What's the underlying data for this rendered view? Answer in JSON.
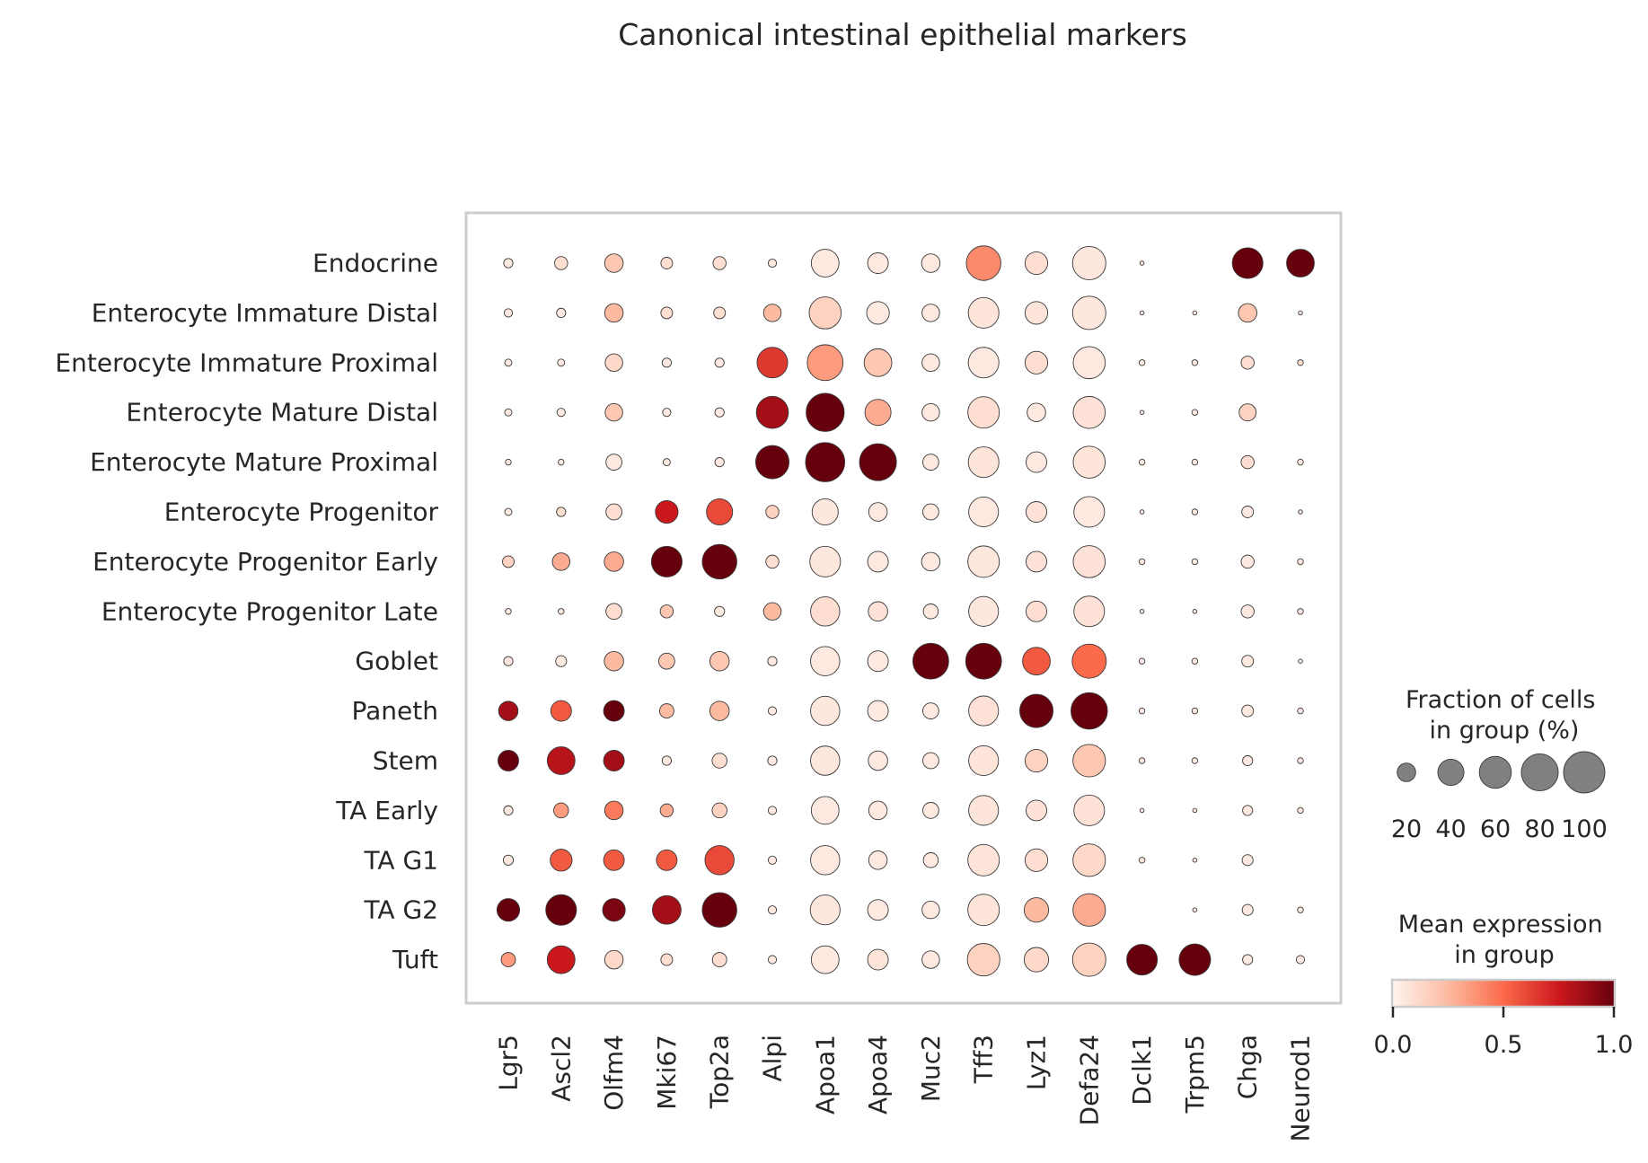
{
  "chart_data": {
    "type": "dotplot",
    "title": "Canonical intestinal epithelial markers",
    "genes": [
      "Lgr5",
      "Ascl2",
      "Olfm4",
      "Mki67",
      "Top2a",
      "Alpi",
      "Apoa1",
      "Apoa4",
      "Muc2",
      "Tff3",
      "Lyz1",
      "Defa24",
      "Dclk1",
      "Trpm5",
      "Chga",
      "Neurod1"
    ],
    "groups": [
      "Endocrine",
      "Enterocyte Immature Distal",
      "Enterocyte Immature Proximal",
      "Enterocyte Mature Distal",
      "Enterocyte Mature Proximal",
      "Enterocyte Progenitor",
      "Enterocyte Progenitor Early",
      "Enterocyte Progenitor Late",
      "Goblet",
      "Paneth",
      "Stem",
      "TA Early",
      "TA G1",
      "TA G2",
      "Tuft"
    ],
    "fraction_pct": [
      [
        5,
        10,
        20,
        8,
        10,
        4,
        45,
        25,
        20,
        70,
        30,
        65,
        1,
        0,
        55,
        45
      ],
      [
        4,
        5,
        20,
        8,
        8,
        18,
        60,
        30,
        18,
        55,
        30,
        65,
        1,
        1,
        20,
        1
      ],
      [
        3,
        3,
        18,
        5,
        5,
        55,
        75,
        45,
        18,
        55,
        30,
        60,
        2,
        2,
        10,
        2
      ],
      [
        3,
        4,
        18,
        4,
        5,
        60,
        85,
        40,
        18,
        58,
        20,
        60,
        1,
        2,
        17,
        0
      ],
      [
        2,
        2,
        15,
        3,
        5,
        65,
        90,
        80,
        15,
        55,
        25,
        60,
        2,
        2,
        10,
        2
      ],
      [
        3,
        5,
        15,
        30,
        40,
        10,
        40,
        20,
        15,
        52,
        25,
        55,
        1,
        2,
        8,
        1
      ],
      [
        8,
        18,
        22,
        55,
        70,
        10,
        55,
        25,
        20,
        58,
        25,
        60,
        2,
        2,
        10,
        2
      ],
      [
        2,
        2,
        15,
        10,
        6,
        18,
        50,
        22,
        13,
        52,
        25,
        55,
        1,
        1,
        10,
        2
      ],
      [
        5,
        7,
        22,
        15,
        22,
        5,
        50,
        25,
        75,
        75,
        45,
        68,
        2,
        2,
        8,
        1
      ],
      [
        22,
        25,
        25,
        12,
        22,
        4,
        50,
        25,
        15,
        52,
        65,
        78,
        2,
        2,
        8,
        2
      ],
      [
        25,
        45,
        25,
        5,
        13,
        5,
        50,
        22,
        15,
        52,
        30,
        62,
        2,
        2,
        6,
        2
      ],
      [
        5,
        13,
        20,
        10,
        13,
        4,
        45,
        20,
        15,
        52,
        25,
        55,
        1,
        1,
        6,
        2
      ],
      [
        6,
        28,
        25,
        25,
        50,
        4,
        50,
        20,
        13,
        58,
        30,
        62,
        2,
        1,
        7,
        0
      ],
      [
        30,
        55,
        30,
        48,
        70,
        4,
        52,
        25,
        18,
        58,
        35,
        62,
        0,
        1,
        7,
        2
      ],
      [
        12,
        45,
        20,
        8,
        12,
        4,
        45,
        25,
        18,
        62,
        35,
        65,
        55,
        58,
        6,
        4
      ]
    ],
    "mean_expression": [
      [
        0.05,
        0.1,
        0.2,
        0.1,
        0.1,
        0.05,
        0.05,
        0.05,
        0.05,
        0.4,
        0.1,
        0.06,
        0.1,
        0.1,
        1.0,
        1.0
      ],
      [
        0.05,
        0.05,
        0.25,
        0.1,
        0.1,
        0.25,
        0.15,
        0.05,
        0.05,
        0.07,
        0.07,
        0.06,
        0.05,
        0.05,
        0.2,
        0.05
      ],
      [
        0.05,
        0.05,
        0.12,
        0.05,
        0.05,
        0.65,
        0.35,
        0.2,
        0.05,
        0.05,
        0.1,
        0.05,
        0.05,
        0.05,
        0.1,
        0.1
      ],
      [
        0.05,
        0.05,
        0.2,
        0.05,
        0.05,
        0.85,
        1.0,
        0.3,
        0.05,
        0.1,
        0.05,
        0.08,
        0.05,
        0.05,
        0.15,
        0.05
      ],
      [
        0.05,
        0.05,
        0.05,
        0.05,
        0.05,
        1.0,
        1.0,
        1.0,
        0.05,
        0.07,
        0.05,
        0.07,
        0.05,
        0.05,
        0.1,
        0.05
      ],
      [
        0.05,
        0.1,
        0.1,
        0.75,
        0.6,
        0.15,
        0.06,
        0.05,
        0.05,
        0.05,
        0.08,
        0.05,
        0.05,
        0.05,
        0.05,
        0.05
      ],
      [
        0.15,
        0.3,
        0.3,
        1.0,
        1.0,
        0.1,
        0.06,
        0.05,
        0.05,
        0.06,
        0.08,
        0.08,
        0.05,
        0.05,
        0.05,
        0.05
      ],
      [
        0.05,
        0.05,
        0.1,
        0.2,
        0.05,
        0.25,
        0.1,
        0.08,
        0.05,
        0.06,
        0.1,
        0.08,
        0.05,
        0.05,
        0.05,
        0.05
      ],
      [
        0.05,
        0.05,
        0.25,
        0.2,
        0.2,
        0.05,
        0.05,
        0.05,
        1.0,
        1.0,
        0.55,
        0.5,
        0.05,
        0.05,
        0.05,
        0.05
      ],
      [
        0.85,
        0.55,
        1.0,
        0.25,
        0.25,
        0.05,
        0.06,
        0.05,
        0.05,
        0.08,
        1.0,
        1.0,
        0.05,
        0.05,
        0.05,
        0.05
      ],
      [
        1.0,
        0.8,
        0.85,
        0.05,
        0.1,
        0.05,
        0.06,
        0.05,
        0.05,
        0.07,
        0.15,
        0.2,
        0.05,
        0.05,
        0.05,
        0.05
      ],
      [
        0.05,
        0.35,
        0.45,
        0.3,
        0.15,
        0.05,
        0.05,
        0.05,
        0.05,
        0.07,
        0.08,
        0.08,
        0.05,
        0.05,
        0.05,
        0.05
      ],
      [
        0.05,
        0.55,
        0.55,
        0.55,
        0.6,
        0.05,
        0.05,
        0.05,
        0.05,
        0.07,
        0.1,
        0.12,
        0.05,
        0.05,
        0.05,
        0.05
      ],
      [
        1.0,
        1.0,
        0.95,
        0.85,
        1.0,
        0.05,
        0.06,
        0.05,
        0.05,
        0.07,
        0.25,
        0.3,
        0.05,
        0.05,
        0.05,
        0.05
      ],
      [
        0.35,
        0.75,
        0.12,
        0.1,
        0.1,
        0.05,
        0.05,
        0.07,
        0.05,
        0.15,
        0.12,
        0.15,
        1.0,
        1.0,
        0.05,
        0.05
      ]
    ],
    "size_legend": {
      "title": "Fraction of cells\nin group (%)",
      "values": [
        20,
        40,
        60,
        80,
        100
      ],
      "labels": [
        "20",
        "40",
        "60",
        "80",
        "100"
      ]
    },
    "color_legend": {
      "title": "Mean expression\nin group",
      "ticks": [
        "0.0",
        "0.5",
        "1.0"
      ],
      "range": [
        0,
        1
      ],
      "colormap": [
        "#fff5f0",
        "#fcbba1",
        "#fb6a4a",
        "#cb181d",
        "#67000d"
      ]
    }
  }
}
